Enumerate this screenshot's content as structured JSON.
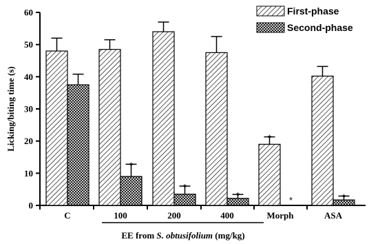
{
  "chart_data": {
    "type": "bar",
    "ylabel": "Licking/biting time (s)",
    "xlabel_prefix": "EE from ",
    "xlabel_species": "S. obtusifolium",
    "xlabel_suffix": " (mg/kg)",
    "ylim": [
      0,
      60
    ],
    "yticks": [
      "0",
      "10",
      "20",
      "30",
      "40",
      "50",
      "60"
    ],
    "categories": [
      "C",
      "100",
      "200",
      "400",
      "Morph",
      "ASA"
    ],
    "series": [
      {
        "name": "First-phase",
        "pattern": "diagonal-hatch",
        "values": [
          48,
          48.5,
          54,
          47.5,
          19,
          40.2
        ],
        "errors": [
          4,
          3,
          3,
          5,
          2.3,
          3
        ],
        "significant": [
          false,
          false,
          false,
          false,
          true,
          false
        ]
      },
      {
        "name": "Second-phase",
        "pattern": "cross-hatch",
        "values": [
          37.5,
          9,
          3.5,
          2.2,
          0,
          1.7
        ],
        "errors": [
          3.3,
          3.8,
          2.5,
          1.2,
          0,
          1.2
        ],
        "significant": [
          false,
          true,
          true,
          true,
          true,
          true
        ]
      }
    ],
    "significance_marker": "*",
    "legend_position": "top-right",
    "grid": false
  }
}
